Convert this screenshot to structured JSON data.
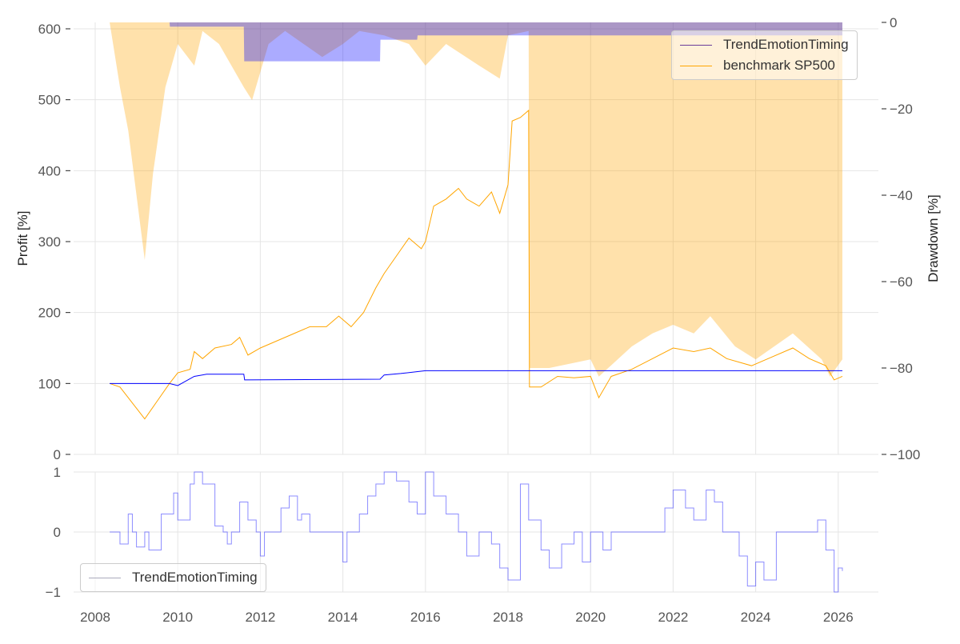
{
  "chart_data": [
    {
      "type": "line",
      "panel": "top",
      "ylabel_left": "Profit [%]",
      "ylabel_right": "Drawdown [%]",
      "ylim_left": [
        0,
        600
      ],
      "ylim_right": [
        -100,
        0
      ],
      "xlim": [
        2007.5,
        2026.9
      ],
      "yticks_left": [
        "0",
        "100",
        "200",
        "300",
        "400",
        "500",
        "600"
      ],
      "yticks_right": [
        "0",
        "−20",
        "−40",
        "−60",
        "−80",
        "−100"
      ],
      "legend": {
        "placement": "top-right",
        "entries": [
          "TrendEmotionTiming",
          "benchmark SP500"
        ]
      },
      "colors": {
        "strategy": "#0000ff",
        "benchmark": "#ffa500",
        "strategy_dd": "#0000ff",
        "benchmark_dd": "#ffa500"
      },
      "series": [
        {
          "name": "TrendEmotionTiming",
          "axis": "left",
          "points": [
            [
              2008.35,
              100
            ],
            [
              2009.8,
              100
            ],
            [
              2010.0,
              97
            ],
            [
              2010.4,
              110
            ],
            [
              2010.7,
              113
            ],
            [
              2011.6,
              113
            ],
            [
              2011.62,
              105
            ],
            [
              2014.9,
              106
            ],
            [
              2015.0,
              112
            ],
            [
              2015.4,
              114
            ],
            [
              2016.0,
              118
            ],
            [
              2026.1,
              118
            ]
          ]
        },
        {
          "name": "benchmark SP500",
          "axis": "left",
          "points": [
            [
              2008.35,
              100
            ],
            [
              2008.6,
              95
            ],
            [
              2008.8,
              80
            ],
            [
              2009.0,
              65
            ],
            [
              2009.2,
              50
            ],
            [
              2009.5,
              75
            ],
            [
              2009.8,
              100
            ],
            [
              2010.0,
              115
            ],
            [
              2010.3,
              120
            ],
            [
              2010.4,
              145
            ],
            [
              2010.6,
              135
            ],
            [
              2010.9,
              150
            ],
            [
              2011.3,
              155
            ],
            [
              2011.5,
              165
            ],
            [
              2011.7,
              140
            ],
            [
              2012.0,
              150
            ],
            [
              2012.4,
              160
            ],
            [
              2012.8,
              170
            ],
            [
              2013.2,
              180
            ],
            [
              2013.6,
              180
            ],
            [
              2013.9,
              195
            ],
            [
              2014.2,
              180
            ],
            [
              2014.5,
              200
            ],
            [
              2014.8,
              235
            ],
            [
              2015.0,
              255
            ],
            [
              2015.3,
              280
            ],
            [
              2015.6,
              305
            ],
            [
              2015.9,
              290
            ],
            [
              2016.0,
              300
            ],
            [
              2016.2,
              350
            ],
            [
              2016.5,
              360
            ],
            [
              2016.8,
              375
            ],
            [
              2017.0,
              360
            ],
            [
              2017.3,
              350
            ],
            [
              2017.6,
              370
            ],
            [
              2017.8,
              340
            ],
            [
              2018.0,
              380
            ],
            [
              2018.1,
              470
            ],
            [
              2018.3,
              475
            ],
            [
              2018.5,
              485
            ],
            [
              2018.52,
              95
            ],
            [
              2018.8,
              95
            ],
            [
              2019.2,
              110
            ],
            [
              2019.6,
              108
            ],
            [
              2020.0,
              110
            ],
            [
              2020.2,
              80
            ],
            [
              2020.5,
              110
            ],
            [
              2021.0,
              120
            ],
            [
              2021.5,
              135
            ],
            [
              2022.0,
              150
            ],
            [
              2022.5,
              145
            ],
            [
              2022.9,
              150
            ],
            [
              2023.3,
              135
            ],
            [
              2023.9,
              125
            ],
            [
              2024.3,
              135
            ],
            [
              2024.9,
              150
            ],
            [
              2025.3,
              135
            ],
            [
              2025.7,
              125
            ],
            [
              2025.9,
              105
            ],
            [
              2026.1,
              110
            ]
          ]
        },
        {
          "name": "benchmark drawdown",
          "axis": "right",
          "type": "area",
          "points": [
            [
              2008.35,
              0
            ],
            [
              2008.6,
              -15
            ],
            [
              2008.8,
              -25
            ],
            [
              2009.0,
              -40
            ],
            [
              2009.2,
              -55
            ],
            [
              2009.4,
              -35
            ],
            [
              2009.7,
              -15
            ],
            [
              2010.0,
              -5
            ],
            [
              2010.4,
              -10
            ],
            [
              2010.6,
              -2
            ],
            [
              2011.0,
              -5
            ],
            [
              2011.6,
              -15
            ],
            [
              2011.8,
              -18
            ],
            [
              2012.2,
              -5
            ],
            [
              2012.6,
              -2
            ],
            [
              2013.5,
              -8
            ],
            [
              2014.0,
              -5
            ],
            [
              2014.4,
              -2
            ],
            [
              2015.0,
              -3
            ],
            [
              2015.6,
              -5
            ],
            [
              2016.0,
              -10
            ],
            [
              2016.5,
              -5
            ],
            [
              2017.3,
              -10
            ],
            [
              2017.8,
              -13
            ],
            [
              2018.0,
              -3
            ],
            [
              2018.5,
              -2
            ],
            [
              2018.52,
              -80
            ],
            [
              2019.0,
              -80
            ],
            [
              2020.0,
              -78
            ],
            [
              2020.2,
              -82
            ],
            [
              2021.0,
              -75
            ],
            [
              2021.5,
              -72
            ],
            [
              2022.0,
              -70
            ],
            [
              2022.5,
              -72
            ],
            [
              2022.9,
              -68
            ],
            [
              2023.5,
              -75
            ],
            [
              2024.0,
              -78
            ],
            [
              2024.9,
              -72
            ],
            [
              2025.6,
              -78
            ],
            [
              2025.8,
              -82
            ],
            [
              2026.1,
              -78
            ]
          ]
        },
        {
          "name": "strategy drawdown",
          "axis": "right",
          "type": "area",
          "points": [
            [
              2008.35,
              0
            ],
            [
              2009.8,
              0
            ],
            [
              2009.81,
              -1
            ],
            [
              2011.6,
              -1
            ],
            [
              2011.61,
              -9
            ],
            [
              2014.9,
              -9
            ],
            [
              2014.91,
              -4
            ],
            [
              2015.8,
              -4
            ],
            [
              2015.81,
              -3
            ],
            [
              2026.1,
              -3
            ]
          ]
        }
      ]
    },
    {
      "type": "line",
      "panel": "bottom",
      "ylim": [
        -1,
        1
      ],
      "yticks": [
        "−1",
        "0",
        "1"
      ],
      "xticks": [
        "2008",
        "2010",
        "2012",
        "2014",
        "2016",
        "2018",
        "2020",
        "2022",
        "2024",
        "2026"
      ],
      "legend": {
        "placement": "bottom-left",
        "entries": [
          "TrendEmotionTiming"
        ]
      },
      "series": [
        {
          "name": "TrendEmotionTiming",
          "step": true,
          "points": [
            [
              2008.35,
              0
            ],
            [
              2008.6,
              -0.2
            ],
            [
              2008.8,
              0.3
            ],
            [
              2008.9,
              0
            ],
            [
              2009.0,
              -0.25
            ],
            [
              2009.2,
              0
            ],
            [
              2009.3,
              -0.3
            ],
            [
              2009.6,
              0.3
            ],
            [
              2009.9,
              0.65
            ],
            [
              2010.0,
              0.2
            ],
            [
              2010.3,
              0.8
            ],
            [
              2010.4,
              1
            ],
            [
              2010.6,
              0.8
            ],
            [
              2010.9,
              0.1
            ],
            [
              2011.1,
              0
            ],
            [
              2011.2,
              -0.2
            ],
            [
              2011.3,
              0
            ],
            [
              2011.5,
              0.5
            ],
            [
              2011.7,
              0.2
            ],
            [
              2011.9,
              0
            ],
            [
              2012.0,
              -0.4
            ],
            [
              2012.1,
              0
            ],
            [
              2012.5,
              0.4
            ],
            [
              2012.7,
              0.6
            ],
            [
              2012.9,
              0.2
            ],
            [
              2013.0,
              0.3
            ],
            [
              2013.2,
              0
            ],
            [
              2014.0,
              -0.5
            ],
            [
              2014.1,
              0
            ],
            [
              2014.4,
              0.3
            ],
            [
              2014.6,
              0.6
            ],
            [
              2014.8,
              0.8
            ],
            [
              2015.0,
              1
            ],
            [
              2015.3,
              0.85
            ],
            [
              2015.6,
              0.5
            ],
            [
              2015.8,
              0.3
            ],
            [
              2016.0,
              1
            ],
            [
              2016.2,
              0.6
            ],
            [
              2016.5,
              0.3
            ],
            [
              2016.8,
              0
            ],
            [
              2017.0,
              -0.4
            ],
            [
              2017.3,
              0
            ],
            [
              2017.6,
              -0.2
            ],
            [
              2017.8,
              -0.6
            ],
            [
              2018.0,
              -0.8
            ],
            [
              2018.3,
              0.8
            ],
            [
              2018.5,
              0.2
            ],
            [
              2018.8,
              -0.3
            ],
            [
              2019.0,
              -0.6
            ],
            [
              2019.3,
              -0.2
            ],
            [
              2019.6,
              0
            ],
            [
              2019.8,
              -0.5
            ],
            [
              2020.0,
              0
            ],
            [
              2020.3,
              -0.3
            ],
            [
              2020.5,
              0
            ],
            [
              2021.8,
              0.4
            ],
            [
              2022.0,
              0.7
            ],
            [
              2022.3,
              0.4
            ],
            [
              2022.5,
              0.2
            ],
            [
              2022.8,
              0.7
            ],
            [
              2023.0,
              0.5
            ],
            [
              2023.2,
              0
            ],
            [
              2023.6,
              -0.4
            ],
            [
              2023.8,
              -0.9
            ],
            [
              2024.0,
              -0.5
            ],
            [
              2024.2,
              -0.8
            ],
            [
              2024.5,
              0
            ],
            [
              2025.5,
              0.2
            ],
            [
              2025.7,
              -0.3
            ],
            [
              2025.9,
              -1
            ],
            [
              2026.0,
              -0.6
            ],
            [
              2026.1,
              -0.65
            ]
          ]
        }
      ]
    }
  ]
}
